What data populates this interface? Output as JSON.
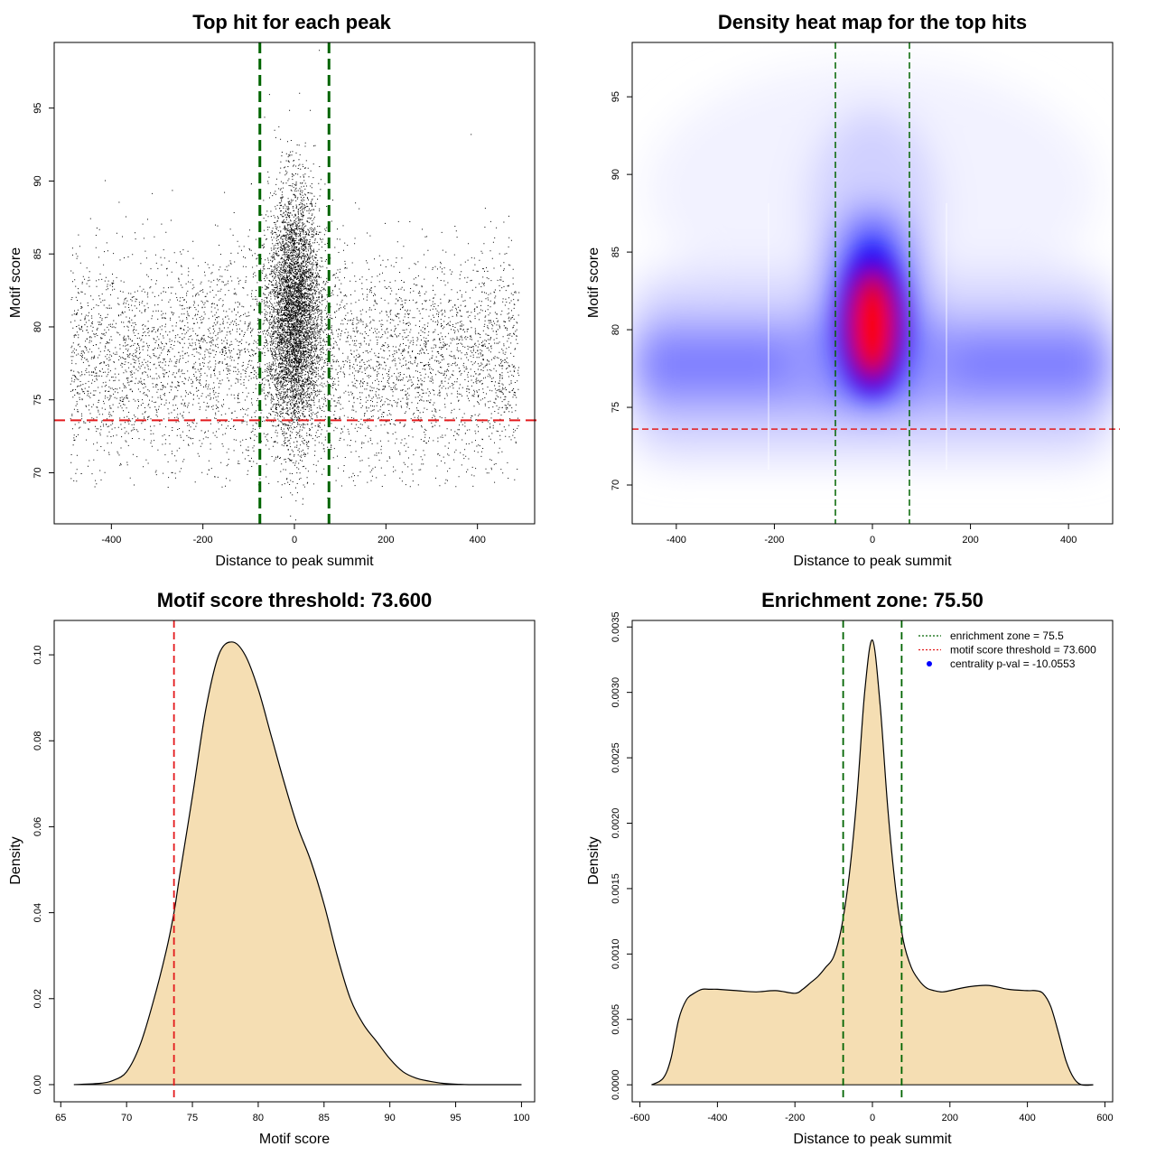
{
  "chart_data": [
    {
      "type": "scatter",
      "title": "Top hit for each peak",
      "xlabel": "Distance to peak summit",
      "ylabel": "Motif score",
      "xlim": [
        -525,
        525
      ],
      "ylim": [
        66.5,
        99.5
      ],
      "xticks": [
        -400,
        -200,
        0,
        200,
        400
      ],
      "yticks": [
        70,
        75,
        80,
        85,
        90,
        95
      ],
      "vlines": [
        -75.5,
        75.5
      ],
      "hline": 73.6,
      "colors": {
        "points": "#000000",
        "vlines": "#006400",
        "hline": "#e31a1c"
      },
      "point_distribution": {
        "background": {
          "x_range": [
            -490,
            490
          ],
          "score_center": 77.8,
          "score_sd": 3.6
        },
        "central": {
          "x_center": 0,
          "x_sd": 28,
          "score_center": 81,
          "score_sd": 4.2
        }
      }
    },
    {
      "type": "heatmap",
      "title": "Density heat map for the top hits",
      "xlabel": "Distance to peak summit",
      "ylabel": "Motif score",
      "xlim": [
        -490,
        490
      ],
      "ylim": [
        67.5,
        98.5
      ],
      "xticks": [
        -400,
        -200,
        0,
        200,
        400
      ],
      "yticks": [
        70,
        75,
        80,
        85,
        90,
        95
      ],
      "vlines": [
        -75.5,
        75.5
      ],
      "hline": 73.6,
      "colors": {
        "low": "#ffffff",
        "mid": "#0000ff",
        "high": "#ff0000",
        "vlines": "#006400",
        "hline": "#e31a1c"
      }
    },
    {
      "type": "area",
      "title": "Motif score threshold: 73.600",
      "xlabel": "Motif score",
      "ylabel": "Density",
      "xlim": [
        64.5,
        101
      ],
      "ylim": [
        -0.004,
        0.108
      ],
      "xticks": [
        65,
        70,
        75,
        80,
        85,
        90,
        95,
        100
      ],
      "yticks": [
        0.0,
        0.02,
        0.04,
        0.06,
        0.08,
        0.1
      ],
      "ytick_labels": [
        "0.00",
        "0.02",
        "0.04",
        "0.06",
        "0.08",
        "0.10"
      ],
      "vline": 73.6,
      "colors": {
        "fill": "#f5deb3",
        "line": "#000000",
        "vline": "#e31a1c"
      },
      "x": [
        66,
        68,
        69,
        70,
        71,
        72,
        73,
        73.6,
        74,
        75,
        76,
        77,
        78,
        79,
        80,
        81,
        82,
        83,
        84,
        85,
        86,
        87,
        88,
        89,
        90,
        91,
        92,
        93,
        94,
        95,
        96,
        97,
        98,
        100
      ],
      "y": [
        0.0,
        0.0003,
        0.001,
        0.003,
        0.009,
        0.019,
        0.031,
        0.04,
        0.048,
        0.067,
        0.087,
        0.1,
        0.103,
        0.1,
        0.092,
        0.081,
        0.07,
        0.06,
        0.052,
        0.042,
        0.03,
        0.02,
        0.014,
        0.01,
        0.006,
        0.003,
        0.0015,
        0.0008,
        0.0003,
        0.0001,
        0.0,
        0.0,
        0.0,
        0.0
      ]
    },
    {
      "type": "area",
      "title": "Enrichment zone: 75.50",
      "xlabel": "Distance to peak summit",
      "ylabel": "Density",
      "xlim": [
        -620,
        620
      ],
      "ylim": [
        -0.00013,
        0.00355
      ],
      "xticks": [
        -600,
        -400,
        -200,
        0,
        200,
        400,
        600
      ],
      "yticks": [
        0.0,
        0.0005,
        0.001,
        0.0015,
        0.002,
        0.0025,
        0.003,
        0.0035
      ],
      "ytick_labels": [
        "0.0000",
        "0.0005",
        "0.0010",
        "0.0015",
        "0.0020",
        "0.0025",
        "0.0030",
        "0.0035"
      ],
      "vlines": [
        -75.5,
        75.5
      ],
      "colors": {
        "fill": "#f5deb3",
        "line": "#000000",
        "vlines": "#006400",
        "hline": "#e31a1c",
        "point": "#0000ff"
      },
      "x": [
        -570,
        -540,
        -520,
        -500,
        -480,
        -460,
        -440,
        -420,
        -400,
        -350,
        -300,
        -250,
        -200,
        -180,
        -160,
        -140,
        -120,
        -100,
        -80,
        -60,
        -40,
        -20,
        0,
        20,
        40,
        60,
        80,
        100,
        120,
        140,
        160,
        180,
        200,
        250,
        300,
        350,
        400,
        420,
        440,
        460,
        480,
        500,
        520,
        540,
        570
      ],
      "y": [
        0.0,
        5e-05,
        0.0002,
        0.0005,
        0.00065,
        0.0007,
        0.00073,
        0.00073,
        0.00073,
        0.00072,
        0.00071,
        0.00072,
        0.0007,
        0.00073,
        0.00078,
        0.00083,
        0.0009,
        0.00098,
        0.0012,
        0.0016,
        0.0022,
        0.003,
        0.0034,
        0.0029,
        0.0021,
        0.0015,
        0.0011,
        0.0009,
        0.0008,
        0.00074,
        0.00072,
        0.00071,
        0.00072,
        0.00075,
        0.00076,
        0.00073,
        0.00072,
        0.00072,
        0.0007,
        0.0006,
        0.0004,
        0.00018,
        5e-05,
        0.0,
        0.0
      ],
      "legend": [
        {
          "label": "enrichment zone = 75.5",
          "style": "dotted",
          "color": "#006400"
        },
        {
          "label": "motif score threshold = 73.600",
          "style": "dotted",
          "color": "#e31a1c"
        },
        {
          "label": "centrality p-val = -10.0553",
          "style": "point",
          "color": "#0000ff"
        }
      ]
    }
  ]
}
